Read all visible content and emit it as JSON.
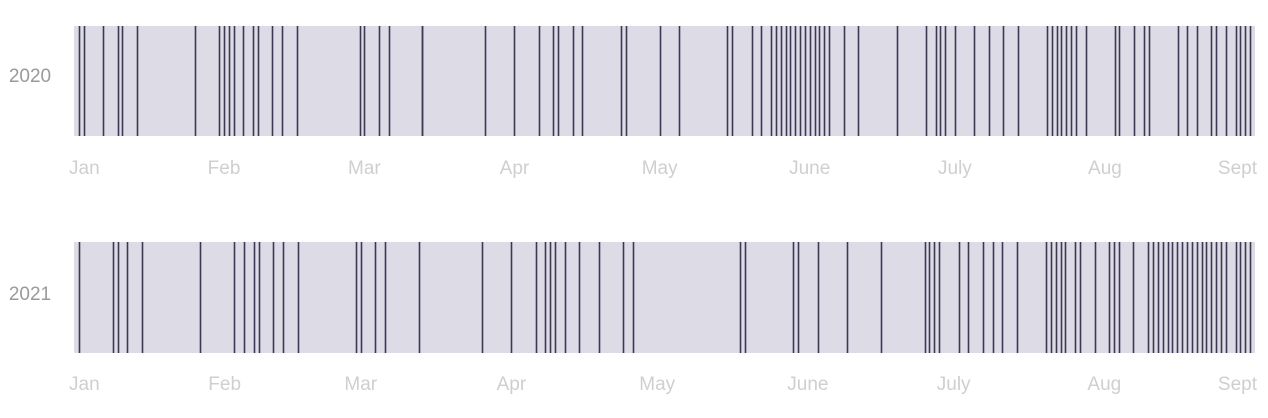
{
  "colors": {
    "background_strip": "#dddbe6",
    "event_line": "#3b3851",
    "label": "#9a9a9a",
    "tick_label": "#cfcfcf"
  },
  "chart_data": [
    {
      "type": "event-strip",
      "title": "",
      "row_label": "2020",
      "x_range": [
        "2020-01-01",
        "2020-09-01"
      ],
      "x_ticks": [
        {
          "date": "2020-01-01",
          "label": "Jan"
        },
        {
          "date": "2020-02-01",
          "label": "Feb"
        },
        {
          "date": "2020-03-01",
          "label": "Mar"
        },
        {
          "date": "2020-04-01",
          "label": "Apr"
        },
        {
          "date": "2020-05-01",
          "label": "May"
        },
        {
          "date": "2020-06-01",
          "label": "June"
        },
        {
          "date": "2020-07-01",
          "label": "July"
        },
        {
          "date": "2020-08-01",
          "label": "Aug"
        },
        {
          "date": "2020-09-01",
          "label": "Sept"
        }
      ],
      "events": [
        "2020-01-02",
        "2020-01-03",
        "2020-01-07",
        "2020-01-10",
        "2020-01-11",
        "2020-01-14",
        "2020-01-26",
        "2020-01-31",
        "2020-02-01",
        "2020-02-02",
        "2020-02-03",
        "2020-02-05",
        "2020-02-07",
        "2020-02-08",
        "2020-02-11",
        "2020-02-13",
        "2020-02-16",
        "2020-02-29",
        "2020-03-01",
        "2020-03-04",
        "2020-03-06",
        "2020-03-13",
        "2020-03-13",
        "2020-03-26",
        "2020-04-01",
        "2020-04-06",
        "2020-04-09",
        "2020-04-10",
        "2020-04-13",
        "2020-04-15",
        "2020-04-23",
        "2020-04-24",
        "2020-05-01",
        "2020-05-05",
        "2020-05-15",
        "2020-05-16",
        "2020-05-20",
        "2020-05-22",
        "2020-05-24",
        "2020-05-25",
        "2020-05-26",
        "2020-05-27",
        "2020-05-28",
        "2020-05-29",
        "2020-05-30",
        "2020-05-31",
        "2020-06-01",
        "2020-06-02",
        "2020-06-03",
        "2020-06-04",
        "2020-06-05",
        "2020-06-08",
        "2020-06-11",
        "2020-06-19",
        "2020-06-25",
        "2020-06-27",
        "2020-06-28",
        "2020-06-29",
        "2020-07-01",
        "2020-07-05",
        "2020-07-08",
        "2020-07-11",
        "2020-07-14",
        "2020-07-20",
        "2020-07-21",
        "2020-07-22",
        "2020-07-23",
        "2020-07-24",
        "2020-07-25",
        "2020-07-26",
        "2020-07-28",
        "2020-08-03",
        "2020-08-04",
        "2020-08-07",
        "2020-08-09",
        "2020-08-10",
        "2020-08-16",
        "2020-08-18",
        "2020-08-20",
        "2020-08-23",
        "2020-08-24",
        "2020-08-26",
        "2020-08-28",
        "2020-08-29",
        "2020-08-30",
        "2020-08-31"
      ]
    },
    {
      "type": "event-strip",
      "title": "",
      "row_label": "2021",
      "x_range": [
        "2021-01-01",
        "2021-09-01"
      ],
      "x_ticks": [
        {
          "date": "2021-01-01",
          "label": "Jan"
        },
        {
          "date": "2021-02-01",
          "label": "Feb"
        },
        {
          "date": "2021-03-01",
          "label": "Mar"
        },
        {
          "date": "2021-04-01",
          "label": "Apr"
        },
        {
          "date": "2021-05-01",
          "label": "May"
        },
        {
          "date": "2021-06-01",
          "label": "June"
        },
        {
          "date": "2021-07-01",
          "label": "July"
        },
        {
          "date": "2021-08-01",
          "label": "Aug"
        },
        {
          "date": "2021-09-01",
          "label": "Sept"
        }
      ],
      "events": [
        "2021-01-02",
        "2021-01-09",
        "2021-01-10",
        "2021-01-12",
        "2021-01-15",
        "2021-01-27",
        "2021-02-03",
        "2021-02-05",
        "2021-02-07",
        "2021-02-08",
        "2021-02-11",
        "2021-02-13",
        "2021-02-16",
        "2021-02-28",
        "2021-03-01",
        "2021-03-04",
        "2021-03-06",
        "2021-03-13",
        "2021-03-26",
        "2021-04-01",
        "2021-04-06",
        "2021-04-08",
        "2021-04-09",
        "2021-04-10",
        "2021-04-12",
        "2021-04-15",
        "2021-04-19",
        "2021-04-24",
        "2021-04-26",
        "2021-05-18",
        "2021-05-19",
        "2021-05-29",
        "2021-05-30",
        "2021-06-03",
        "2021-06-09",
        "2021-06-16",
        "2021-06-25",
        "2021-06-26",
        "2021-06-27",
        "2021-06-28",
        "2021-07-02",
        "2021-07-04",
        "2021-07-07",
        "2021-07-09",
        "2021-07-11",
        "2021-07-14",
        "2021-07-20",
        "2021-07-21",
        "2021-07-22",
        "2021-07-23",
        "2021-07-24",
        "2021-07-26",
        "2021-07-27",
        "2021-07-30",
        "2021-08-02",
        "2021-08-03",
        "2021-08-04",
        "2021-08-07",
        "2021-08-10",
        "2021-08-11",
        "2021-08-12",
        "2021-08-13",
        "2021-08-14",
        "2021-08-15",
        "2021-08-16",
        "2021-08-17",
        "2021-08-18",
        "2021-08-19",
        "2021-08-20",
        "2021-08-21",
        "2021-08-22",
        "2021-08-23",
        "2021-08-24",
        "2021-08-25",
        "2021-08-26",
        "2021-08-28",
        "2021-08-29",
        "2021-08-30",
        "2021-08-31"
      ]
    }
  ]
}
